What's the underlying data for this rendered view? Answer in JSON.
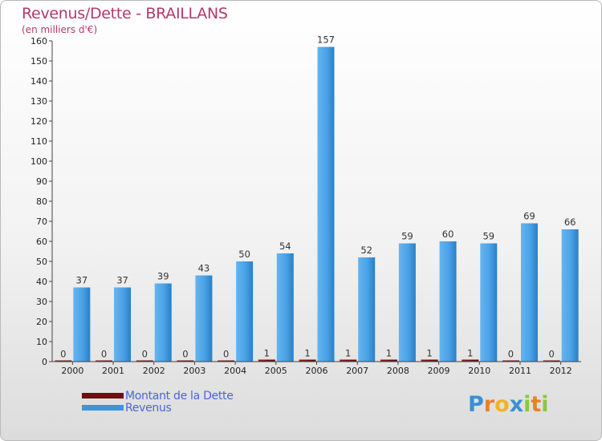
{
  "header": {
    "title": "Revenus/Dette - BRAILLANS",
    "subtitle": "(en milliers d'€)"
  },
  "chart_data": {
    "type": "bar",
    "title": "Revenus/Dette - BRAILLANS",
    "ylabel": "(en milliers d'€)",
    "xlabel": "",
    "ylim": [
      0,
      160
    ],
    "yticks": [
      0,
      10,
      20,
      30,
      40,
      50,
      60,
      70,
      80,
      90,
      100,
      110,
      120,
      130,
      140,
      150,
      160
    ],
    "categories": [
      "2000",
      "2001",
      "2002",
      "2003",
      "2004",
      "2005",
      "2006",
      "2007",
      "2008",
      "2009",
      "2010",
      "2011",
      "2012"
    ],
    "series": [
      {
        "name": "Montant de la Dette",
        "color": "#6b0f0f",
        "values": [
          0,
          0,
          0,
          0,
          0,
          1,
          1,
          1,
          1,
          1,
          1,
          0,
          0
        ]
      },
      {
        "name": "Revenus",
        "color": "#3d96dc",
        "values": [
          37,
          37,
          39,
          43,
          50,
          54,
          157,
          52,
          59,
          60,
          59,
          69,
          66
        ]
      }
    ],
    "legend_position": "bottom-left"
  },
  "legend": {
    "items": [
      {
        "label": "Montant de la Dette",
        "color": "#6b0f0f"
      },
      {
        "label": "Revenus",
        "color": "#3d96dc"
      }
    ]
  },
  "logo": {
    "letters": [
      "P",
      "r",
      "o",
      "x",
      "i",
      "t",
      "i"
    ],
    "colors": [
      "#3a8fd6",
      "#e8822a",
      "#f0b423",
      "#3a8fd6",
      "#8cc63f",
      "#e8822a",
      "#8cc63f"
    ]
  }
}
